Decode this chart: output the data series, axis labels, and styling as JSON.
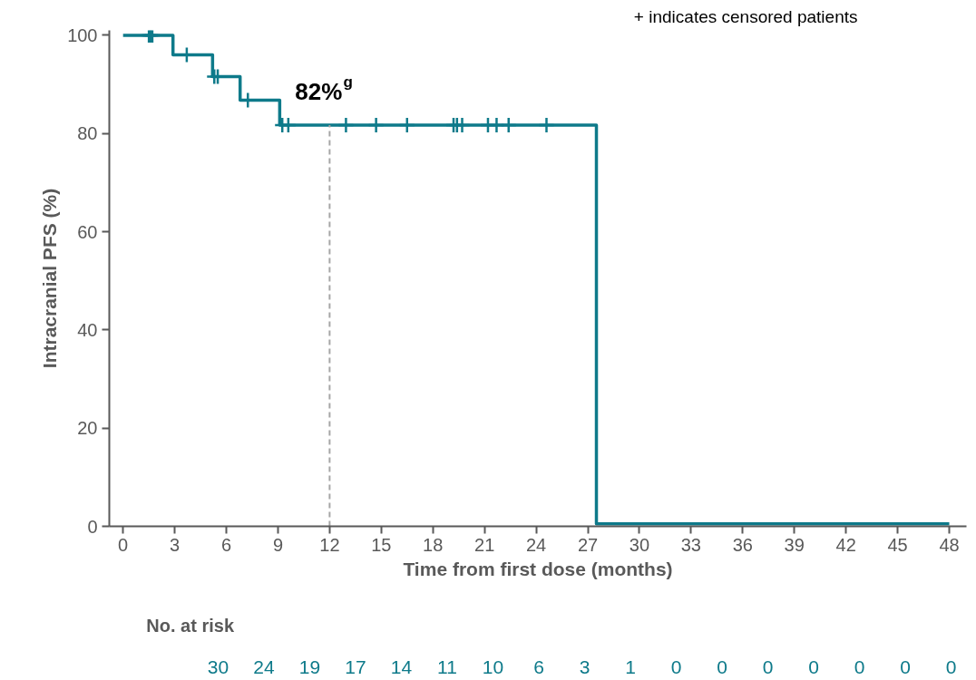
{
  "chart_data": {
    "type": "step",
    "xlabel": "Time from first dose (months)",
    "ylabel": "Intracranial PFS (%)",
    "xlim": [
      -0.8,
      49
    ],
    "ylim": [
      0,
      101
    ],
    "xticks": [
      0,
      3,
      6,
      9,
      12,
      15,
      18,
      21,
      24,
      27,
      30,
      33,
      36,
      39,
      42,
      45,
      48
    ],
    "yticks": [
      0,
      20,
      40,
      60,
      80,
      100
    ],
    "grid": false,
    "series": [
      {
        "color": "#0e7a8a",
        "x": [
          0,
          2.9,
          5.2,
          6.8,
          9.1,
          27.5,
          48
        ],
        "values": [
          100,
          96,
          91.6,
          86.8,
          81.7,
          0.5,
          0.5
        ]
      },
      {
        "type": "scatter",
        "marker": "cross",
        "color": "#0e7a8a",
        "x": [
          1.5,
          1.6,
          1.7,
          3.7,
          5.3,
          5.5,
          7.25,
          9.25,
          9.6,
          12.95,
          14.7,
          16.5,
          19.2,
          19.4,
          19.7,
          21.2,
          21.7,
          22.4,
          24.6
        ],
        "values": [
          100,
          100,
          100,
          96,
          91.6,
          91.6,
          86.8,
          81.7,
          81.7,
          81.7,
          81.7,
          81.7,
          81.7,
          81.7,
          81.7,
          81.7,
          81.7,
          81.7,
          81.7
        ]
      }
    ],
    "ref_lines": [
      {
        "axis": "x",
        "value": 12,
        "color": "#a6a6a6",
        "line_style": "dashed"
      }
    ],
    "annotations": [
      "+ indicates censored patients",
      {
        "text": "82%$^{g}$",
        "x": 12,
        "y": 81.7
      },
      "No. at risk",
      "30",
      "24",
      "19",
      "17",
      "14",
      "11",
      "10",
      "6",
      "3",
      "1",
      "0",
      "0",
      "0",
      "0",
      "0",
      "0",
      "0"
    ]
  }
}
